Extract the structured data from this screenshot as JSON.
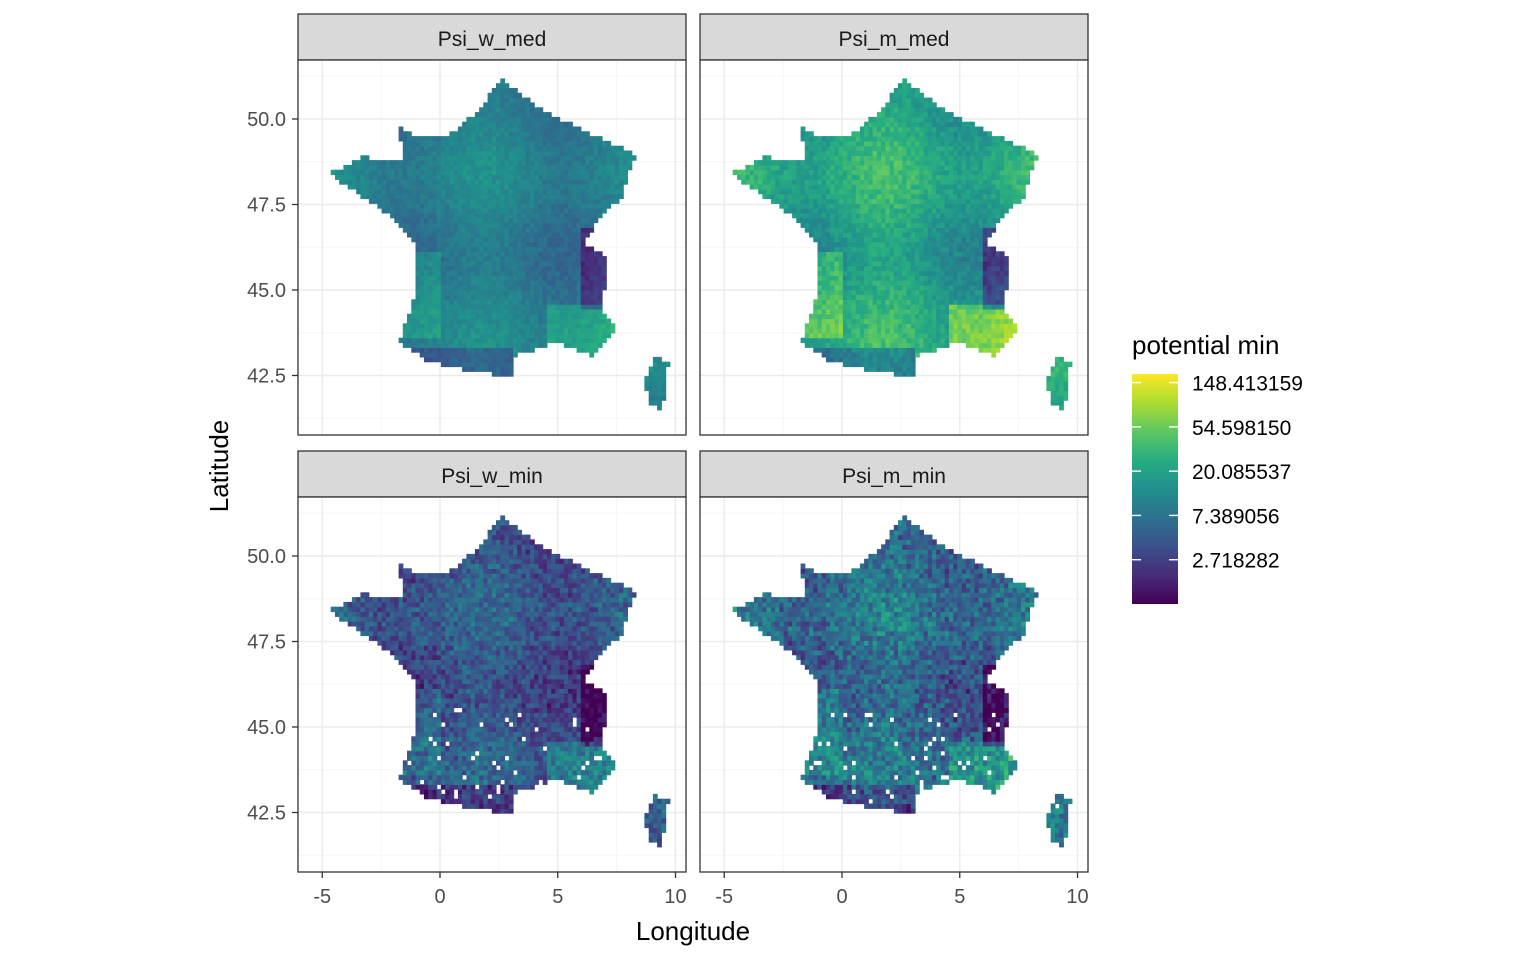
{
  "chart_data": {
    "type": "heatmap",
    "subtype": "faceted raster map",
    "title": "",
    "xlabel": "Longitude",
    "ylabel": "Latitude",
    "xlim": [
      -6.0,
      10.5
    ],
    "ylim": [
      41.0,
      52.0
    ],
    "x_ticks": [
      -5,
      0,
      5,
      10
    ],
    "x_tick_labels": [
      "-5",
      "0",
      "5",
      "10"
    ],
    "y_ticks": [
      42.5,
      45.0,
      47.5,
      50.0
    ],
    "y_tick_labels": [
      "42.5",
      "45.0",
      "47.5",
      "50.0"
    ],
    "grid": true,
    "facet_layout": "2x2",
    "panels": [
      {
        "label": "Psi_w_med",
        "row": 0,
        "col": 0,
        "base_level": 0.42,
        "variation": 0.1,
        "speckle": 0.0
      },
      {
        "label": "Psi_m_med",
        "row": 0,
        "col": 1,
        "base_level": 0.58,
        "variation": 0.14,
        "speckle": 0.0
      },
      {
        "label": "Psi_w_min",
        "row": 1,
        "col": 0,
        "base_level": 0.26,
        "variation": 0.1,
        "speckle": 0.45
      },
      {
        "label": "Psi_m_min",
        "row": 1,
        "col": 1,
        "base_level": 0.34,
        "variation": 0.12,
        "speckle": 0.55
      }
    ],
    "legend": {
      "title": "potential min",
      "placement": "right",
      "scale": "log",
      "colormap": "viridis",
      "breaks": [
        148.413159,
        54.59815,
        20.085537,
        7.389056,
        2.718282
      ],
      "break_labels": [
        "148.413159",
        "54.598150",
        "20.085537",
        "7.389056",
        "2.718282"
      ],
      "range": [
        1.0,
        180.0
      ]
    },
    "region_outline_lonlat": [
      [
        2.5,
        51.1
      ],
      [
        4.2,
        50.2
      ],
      [
        6.2,
        49.5
      ],
      [
        8.2,
        48.9
      ],
      [
        7.6,
        47.6
      ],
      [
        7.0,
        47.3
      ],
      [
        6.0,
        46.3
      ],
      [
        7.0,
        45.9
      ],
      [
        6.8,
        44.2
      ],
      [
        7.5,
        43.8
      ],
      [
        6.4,
        43.0
      ],
      [
        4.9,
        43.4
      ],
      [
        3.1,
        43.0
      ],
      [
        3.0,
        42.4
      ],
      [
        1.7,
        42.5
      ],
      [
        -0.5,
        42.8
      ],
      [
        -1.8,
        43.4
      ],
      [
        -1.2,
        44.7
      ],
      [
        -1.1,
        46.2
      ],
      [
        -2.2,
        47.1
      ],
      [
        -4.8,
        48.3
      ],
      [
        -3.5,
        48.8
      ],
      [
        -1.6,
        48.7
      ],
      [
        -1.9,
        49.7
      ],
      [
        -1.2,
        49.4
      ],
      [
        0.2,
        49.4
      ],
      [
        1.6,
        50.2
      ]
    ],
    "island_outline_lonlat": [
      [
        9.1,
        43.0
      ],
      [
        9.6,
        42.8
      ],
      [
        9.5,
        41.9
      ],
      [
        9.3,
        41.4
      ],
      [
        8.8,
        41.6
      ],
      [
        8.6,
        42.2
      ],
      [
        8.8,
        42.6
      ]
    ],
    "colors": {
      "strip_fill": "#d9d9d9",
      "panel_border": "#333333",
      "grid_major": "#ebebeb",
      "grid_minor": "#f5f5f5",
      "tick_text": "#4d4d4d"
    }
  }
}
